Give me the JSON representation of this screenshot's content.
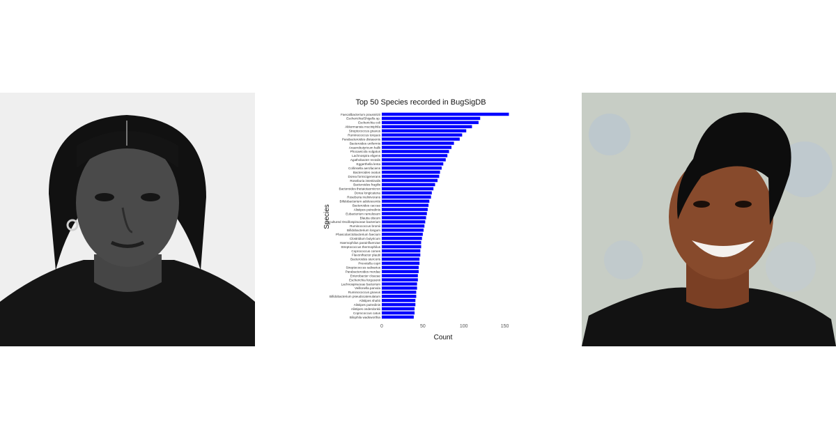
{
  "chart_data": {
    "type": "bar",
    "orientation": "horizontal",
    "title": "Top 50 Species recorded in BugSigDB",
    "xlabel": "Count",
    "ylabel": "Species",
    "xlim": [
      0,
      158
    ],
    "xticks": [
      0,
      50,
      100,
      150
    ],
    "grid": false,
    "legend": "none",
    "bar_color": "#0000ff",
    "categories": [
      "Faecalibacterium prausnitzii",
      "Escherichia/Shigella sp.",
      "Escherichia coli",
      "Akkermansia muciniphila",
      "Streptococcus gnavus",
      "Ruminococcus torques",
      "Parabacteroides distasonis",
      "Bacteroides uniformis",
      "Anaerobutyricum hallii",
      "Phocaeicola vulgatus",
      "Lachnospira eligens",
      "Agathobacter rectalis",
      "Eggerthella lenta",
      "Collinsella aerofaciens",
      "Bacteroides ovatus",
      "Dorea formicigenerans",
      "Roseburia intestinalis",
      "Bacteroides fragilis",
      "Bacteroides thetaiotaomicron",
      "Dorea longicatena",
      "Roseburia inulinivorans",
      "Bifidobacterium adolescentis",
      "Bacteroides caccae",
      "Alistipes putredinis",
      "Eubacterium ramulosum",
      "Blautia obeum",
      "uncultured Oscillospiraceae bacterium",
      "Ruminococcus bromii",
      "Bifidobacterium longum",
      "Phascolarctobacterium faecium",
      "Clostridium butyricum",
      "Haemophilus parainfluenzae",
      "Streptococcus thermophilus",
      "Coprococcus comes",
      "Flavonifractor plautii",
      "Bacteroides stercoris",
      "Prevotella copri",
      "Streptococcus salivarius",
      "Parabacteroides merdae",
      "Enterobacter cloacae",
      "Escherichia fergusonii",
      "Lachnospiraceae bacterium",
      "Veillonella parvula",
      "Ruminococcus gnavus",
      "Bifidobacterium pseudocatenulatum",
      "Alistipes shahii",
      "Alistipes putredinis",
      "Alistipes onderdonkii",
      "Coprococcus catus",
      "Bilophila wadsworthia"
    ],
    "values": [
      155,
      120,
      118,
      110,
      103,
      98,
      95,
      88,
      85,
      82,
      80,
      78,
      75,
      73,
      71,
      70,
      68,
      65,
      63,
      61,
      60,
      58,
      57,
      56,
      55,
      54,
      53,
      52,
      51,
      50,
      49,
      48,
      48,
      47,
      47,
      46,
      46,
      45,
      45,
      44,
      44,
      43,
      43,
      42,
      42,
      41,
      41,
      40,
      40,
      39
    ]
  }
}
